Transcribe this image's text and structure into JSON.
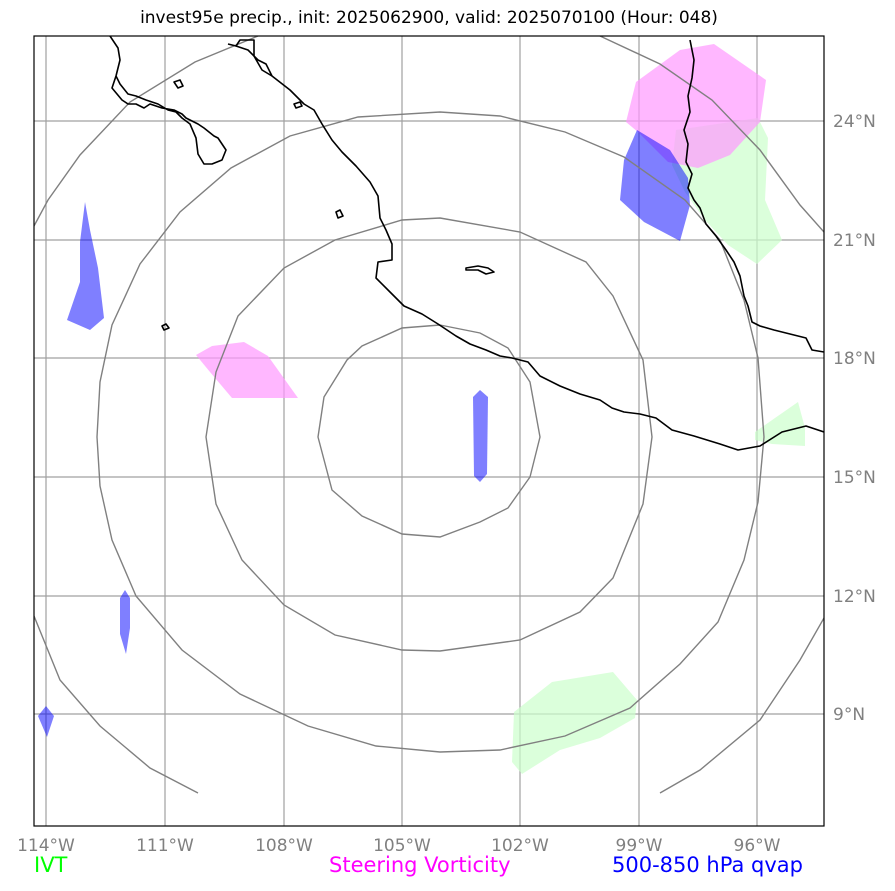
{
  "title": "invest95e precip., init: 2025062900, valid: 2025070100 (Hour: 048)",
  "lon_ticks": [
    "114°W",
    "111°W",
    "108°W",
    "105°W",
    "102°W",
    "99°W",
    "96°W"
  ],
  "lat_ticks": [
    "24°N",
    "21°N",
    "18°N",
    "15°N",
    "12°N",
    "9°N"
  ],
  "legend": {
    "ivt": {
      "label": "IVT",
      "color": "#00ff00"
    },
    "steering": {
      "label": "Steering Vorticity",
      "color": "#ff00ff"
    },
    "qvap": {
      "label": "500-850 hPa qvap",
      "color": "#0000ff"
    }
  },
  "colors": {
    "ivt_fill": "#ccffcc",
    "steering_fill": "#ff99ff",
    "qvap_fill": "#0000ff",
    "coastline": "#000000",
    "range_rings": "#808080",
    "gridlines": "#a0a0a0"
  }
}
